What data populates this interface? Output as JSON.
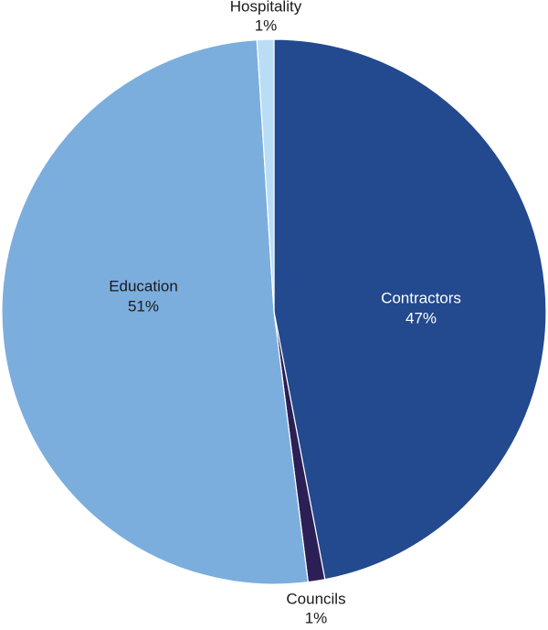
{
  "chart_data": {
    "type": "pie",
    "title": "",
    "start_angle_deg": 0,
    "direction": "clockwise",
    "slices": [
      {
        "label": "Contractors",
        "value": 47,
        "percent_label": "47%",
        "color": "#23498F",
        "label_color": "#ffffff"
      },
      {
        "label": "Councils",
        "value": 1,
        "percent_label": "1%",
        "color": "#2C1F55",
        "label_color": "#1a1a1a"
      },
      {
        "label": "Education",
        "value": 51,
        "percent_label": "51%",
        "color": "#7BAEDD",
        "label_color": "#1a1a1a"
      },
      {
        "label": "Hospitality",
        "value": 1,
        "percent_label": "1%",
        "color": "#B9DDF5",
        "label_color": "#1a1a1a"
      }
    ]
  }
}
